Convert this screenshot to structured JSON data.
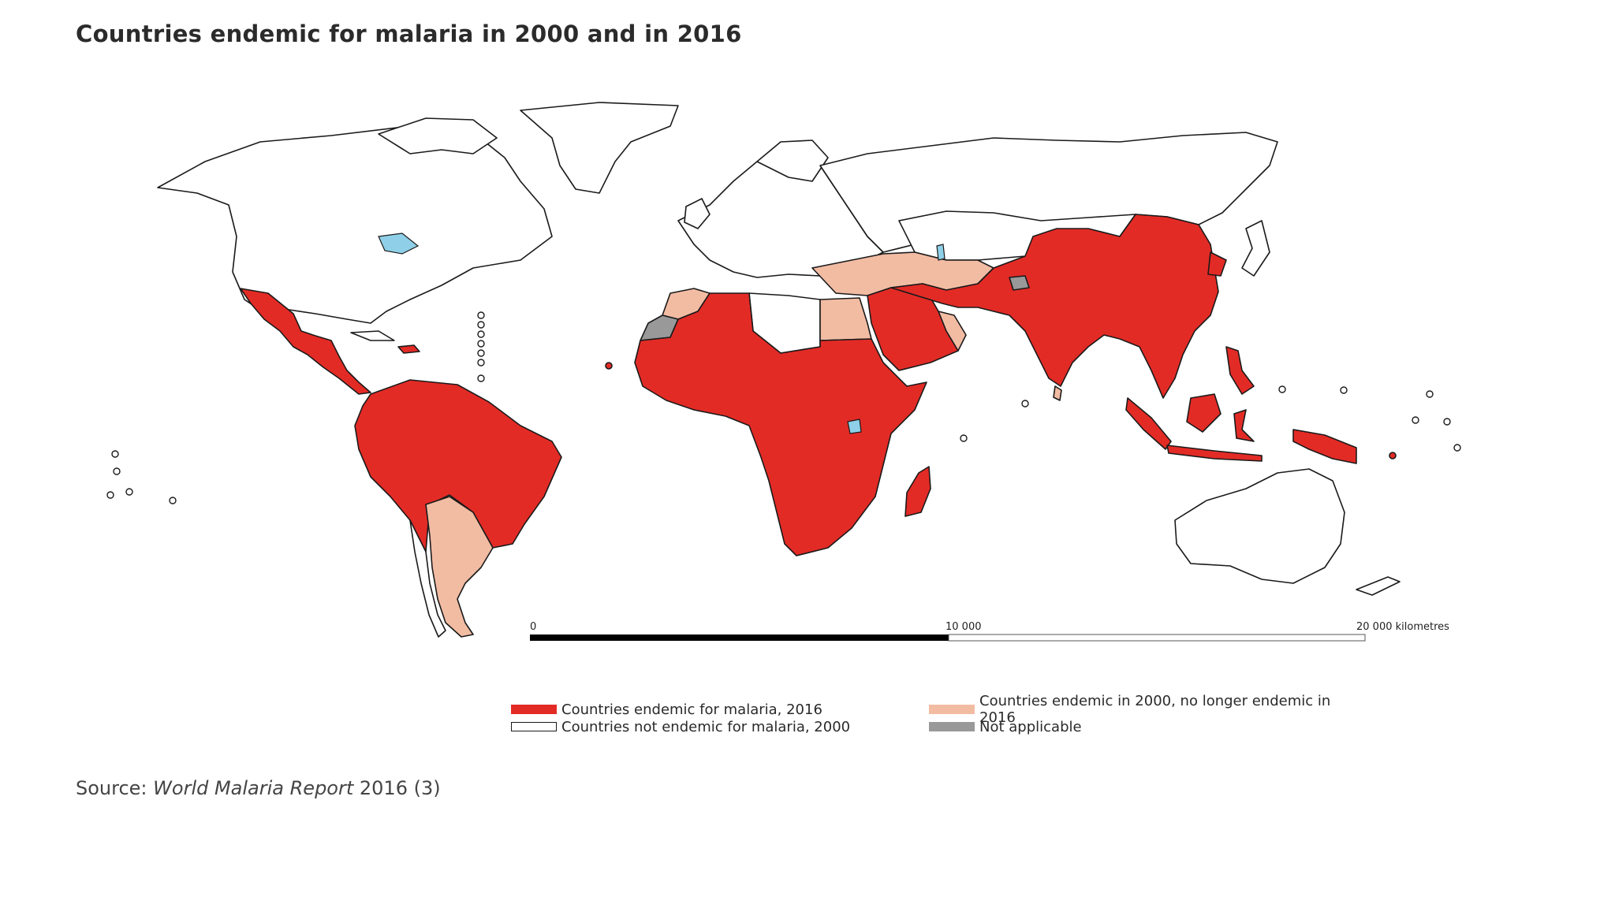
{
  "title": "Countries endemic for malaria in 2000 and in 2016",
  "scale_bar": {
    "label_start": "0",
    "label_mid": "10 000",
    "label_end": "20 000 kilometres"
  },
  "legend": {
    "items": [
      {
        "key": "endemic_2016",
        "label": "Countries endemic for malaria, 2016",
        "color": "#e32b26"
      },
      {
        "key": "former",
        "label": "Countries endemic in 2000, no longer endemic in 2016",
        "color": "#f2bca3"
      },
      {
        "key": "not_endemic",
        "label": "Countries not endemic for malaria, 2000",
        "color": "#ffffff"
      },
      {
        "key": "not_applicable",
        "label": "Not applicable",
        "color": "#999999"
      }
    ]
  },
  "source": {
    "prefix": "Source: ",
    "report": "World Malaria Report",
    "suffix": " 2016 (3)"
  }
}
